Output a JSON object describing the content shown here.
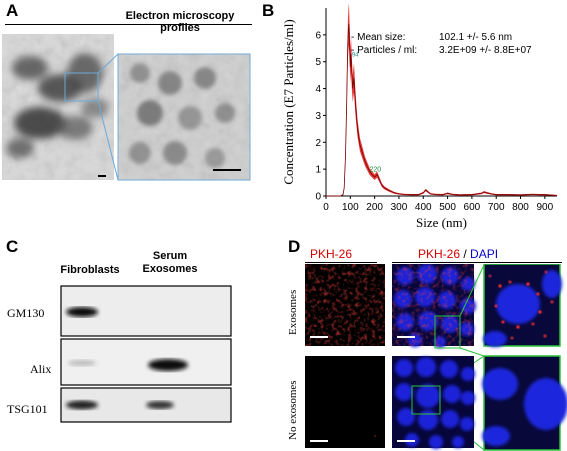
{
  "panels": {
    "a": "A",
    "b": "B",
    "c": "C",
    "d": "D"
  },
  "panel_a": {
    "title": "Electron microscopy profiles"
  },
  "panel_c": {
    "col_fibroblasts": "Fibroblasts",
    "col_serum_line1": "Serum",
    "col_serum_line2": "Exosomes",
    "rows": [
      "GM130",
      "Alix",
      "TSG101"
    ]
  },
  "panel_d": {
    "head_left": "PKH-26",
    "head_right_red": "PKH-26",
    "head_right_sep": " / ",
    "head_right_blue": "DAPI",
    "row_top": "Exosomes",
    "row_bottom": "No exosomes"
  },
  "chart_data": {
    "type": "line",
    "ylabel": "Concentration (E7 Particles/ml)",
    "xlabel": "Size (nm)",
    "xlim": [
      0,
      950
    ],
    "ylim": [
      0,
      7
    ],
    "xticks": [
      0,
      100,
      200,
      300,
      400,
      500,
      600,
      700,
      800,
      900
    ],
    "yticks": [
      0,
      1,
      2,
      3,
      4,
      5,
      6
    ],
    "legend": [
      {
        "label": "- Mean size:",
        "value": "102.1 +/- 5.6 nm"
      },
      {
        "label": "- Particles / ml:",
        "value": "3.2E+09 +/- 8.8E+07"
      }
    ],
    "annotations": [
      "94",
      "220"
    ],
    "series": [
      {
        "x": [
          0,
          40,
          60,
          70,
          75,
          80,
          85,
          88,
          90,
          92,
          94,
          96,
          98,
          100,
          103,
          106,
          110,
          115,
          120,
          125,
          130,
          140,
          150,
          160,
          170,
          180,
          190,
          200,
          210,
          220,
          230,
          240,
          250,
          260,
          280,
          300,
          320,
          350,
          380,
          400,
          410,
          420,
          430,
          450,
          480,
          500,
          520,
          550,
          600,
          640,
          650,
          660,
          680,
          700,
          750,
          800,
          850,
          880,
          900,
          950
        ],
        "values": [
          0,
          0,
          0,
          0.05,
          0.3,
          1.5,
          3.5,
          5.0,
          5.8,
          6.2,
          6.4,
          6.0,
          5.5,
          4.8,
          5.3,
          4.6,
          4.0,
          4.4,
          3.6,
          3.0,
          2.5,
          1.9,
          1.6,
          1.3,
          1.1,
          0.9,
          0.8,
          0.7,
          0.8,
          0.6,
          0.4,
          0.3,
          0.25,
          0.2,
          0.12,
          0.08,
          0.06,
          0.05,
          0.05,
          0.12,
          0.22,
          0.15,
          0.08,
          0.06,
          0.05,
          0.1,
          0.06,
          0.04,
          0.05,
          0.1,
          0.15,
          0.12,
          0.08,
          0.05,
          0.05,
          0.04,
          0.06,
          0.05,
          0.05,
          0.02
        ]
      }
    ]
  }
}
